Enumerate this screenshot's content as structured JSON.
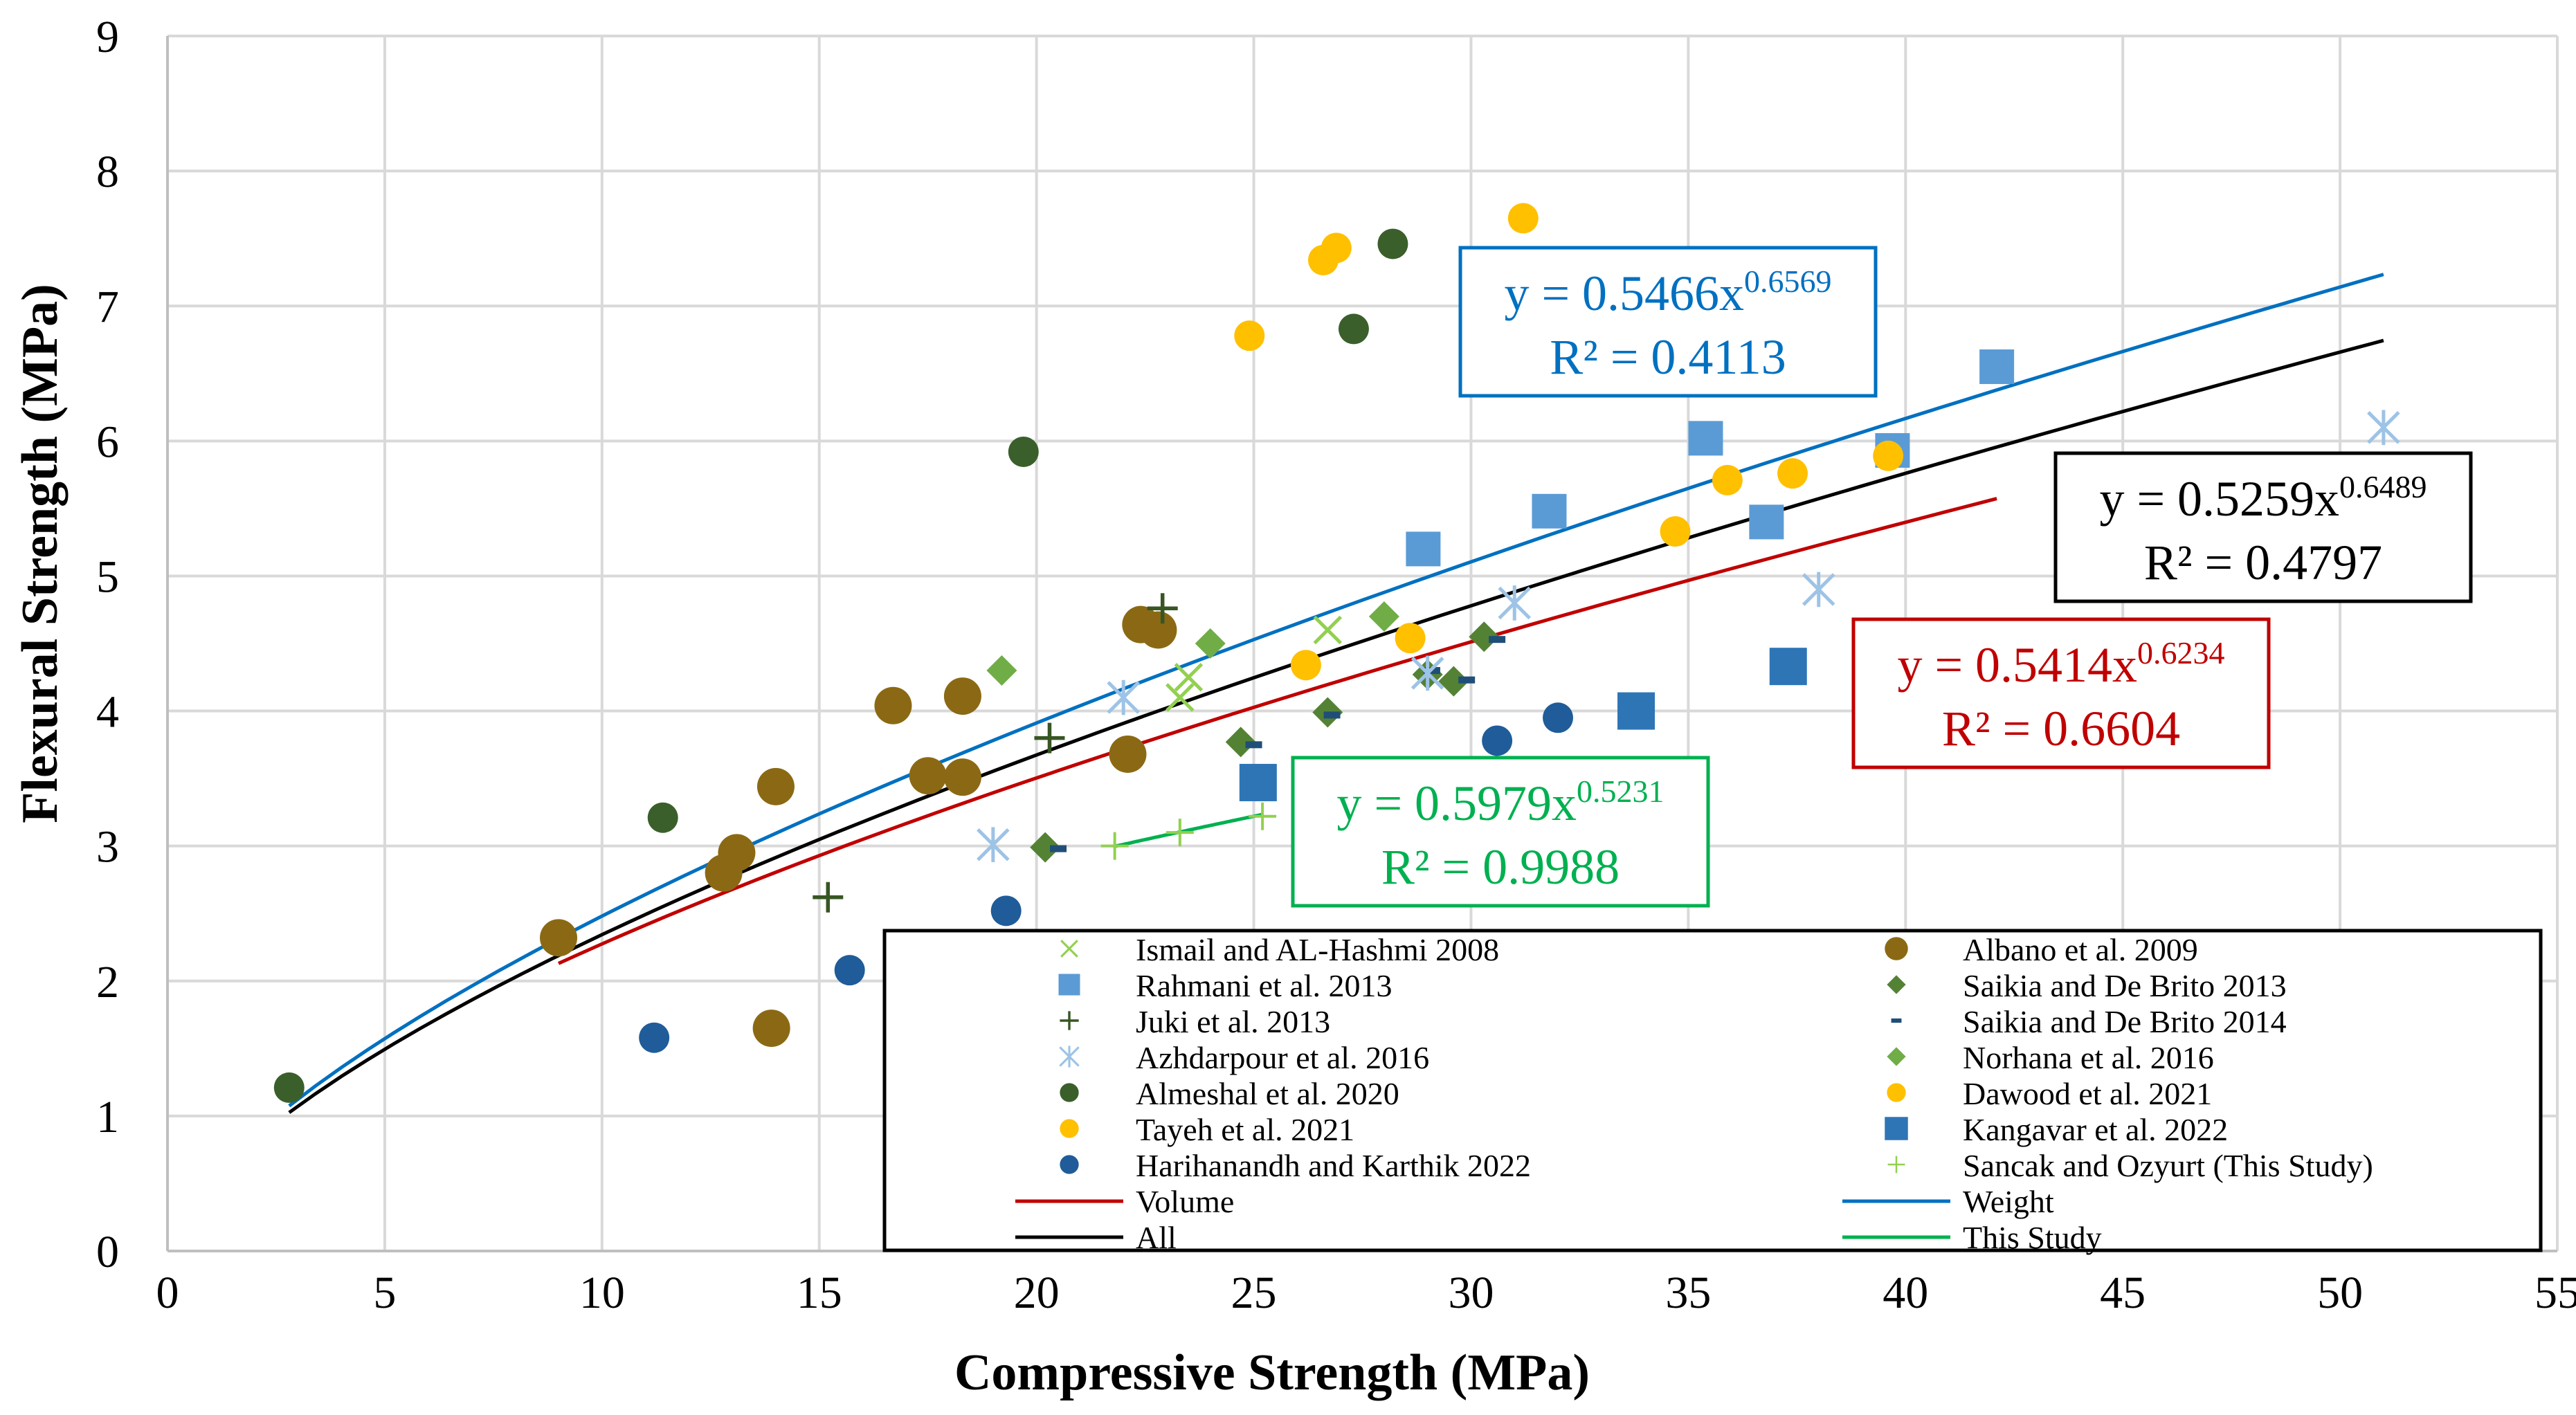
{
  "chart_data": {
    "type": "scatter",
    "title": "",
    "xlabel": "Compressive Strength (MPa)",
    "ylabel": "Flexural Strength (MPa)",
    "xlim": [
      0,
      55
    ],
    "ylim": [
      0,
      9
    ],
    "x_ticks": [
      0,
      5,
      10,
      15,
      20,
      25,
      30,
      35,
      40,
      45,
      50,
      55
    ],
    "y_ticks": [
      0,
      1,
      2,
      3,
      4,
      5,
      6,
      7,
      8,
      9
    ],
    "grid": true,
    "legend_position": "bottom-right",
    "series": [
      {
        "name": "Ismail and AL-Hashmi 2008",
        "marker": "x",
        "color": "#92D050",
        "points": [
          [
            23.5,
            4.25
          ],
          [
            23.3,
            4.1
          ],
          [
            26.7,
            4.6
          ]
        ]
      },
      {
        "name": "Albano et al. 2009",
        "marker": "circle-large",
        "color": "#8B6914",
        "points": [
          [
            9.0,
            2.32
          ],
          [
            12.8,
            2.8
          ],
          [
            13.1,
            2.95
          ],
          [
            13.9,
            1.65
          ],
          [
            14.0,
            3.44
          ],
          [
            16.7,
            4.04
          ],
          [
            17.5,
            3.52
          ],
          [
            18.3,
            4.11
          ],
          [
            18.3,
            3.51
          ],
          [
            22.1,
            3.68
          ],
          [
            22.4,
            4.64
          ],
          [
            22.8,
            4.6
          ]
        ]
      },
      {
        "name": "Rahmani et al. 2013",
        "marker": "square",
        "color": "#5B9BD5",
        "points": [
          [
            28.9,
            5.2
          ],
          [
            31.8,
            5.48
          ],
          [
            35.4,
            6.02
          ],
          [
            36.8,
            5.4
          ],
          [
            39.7,
            5.93
          ],
          [
            42.1,
            6.55
          ]
        ]
      },
      {
        "name": "Saikia and De Brito 2013",
        "marker": "diamond",
        "color": "#548235",
        "points": [
          [
            20.2,
            2.99
          ],
          [
            24.7,
            3.77
          ],
          [
            26.7,
            3.99
          ],
          [
            29.0,
            4.27
          ],
          [
            29.6,
            4.22
          ],
          [
            30.3,
            4.55
          ]
        ]
      },
      {
        "name": "Juki et al. 2013",
        "marker": "plus",
        "color": "#375623",
        "points": [
          [
            15.2,
            2.62
          ],
          [
            20.3,
            3.8
          ],
          [
            22.9,
            4.76
          ]
        ]
      },
      {
        "name": "Saikia and De Brito 2014",
        "marker": "dash",
        "color": "#1F4E79",
        "points": [
          [
            20.5,
            2.98
          ],
          [
            25.0,
            3.75
          ],
          [
            26.8,
            3.97
          ],
          [
            29.1,
            4.3
          ],
          [
            29.9,
            4.23
          ],
          [
            30.6,
            4.53
          ]
        ]
      },
      {
        "name": "Azhdarpour et al. 2016",
        "marker": "asterisk",
        "color": "#9DC3E6",
        "points": [
          [
            19.0,
            3.01
          ],
          [
            22.0,
            4.1
          ],
          [
            29.0,
            4.28
          ],
          [
            31.0,
            4.8
          ],
          [
            38.0,
            4.9
          ],
          [
            51.0,
            6.1
          ]
        ]
      },
      {
        "name": "Norhana et al. 2016",
        "marker": "diamond",
        "color": "#70AD47",
        "points": [
          [
            19.2,
            4.3
          ],
          [
            24.0,
            4.5
          ],
          [
            28.0,
            4.7
          ]
        ]
      },
      {
        "name": "Almeshal et al. 2020",
        "marker": "circle",
        "color": "#3A5F2B",
        "points": [
          [
            2.8,
            1.21
          ],
          [
            11.4,
            3.21
          ],
          [
            19.7,
            5.92
          ],
          [
            27.3,
            6.83
          ],
          [
            28.2,
            7.46
          ]
        ]
      },
      {
        "name": "Dawood et al. 2021",
        "marker": "circle",
        "color": "#FFC000",
        "points": [
          [
            26.2,
            4.34
          ],
          [
            28.6,
            4.54
          ],
          [
            34.7,
            5.33
          ],
          [
            35.9,
            5.71
          ],
          [
            37.4,
            5.76
          ],
          [
            39.6,
            5.89
          ]
        ]
      },
      {
        "name": "Tayeh et al. 2021",
        "marker": "circle",
        "color": "#FFC000",
        "points": [
          [
            24.9,
            6.78
          ],
          [
            26.6,
            7.34
          ],
          [
            26.9,
            7.43
          ],
          [
            31.2,
            7.65
          ]
        ]
      },
      {
        "name": "Kangavar et al. 2022",
        "marker": "square-large",
        "color": "#2E75B6",
        "points": [
          [
            25.1,
            3.47
          ],
          [
            33.8,
            4.0
          ],
          [
            37.3,
            4.33
          ]
        ]
      },
      {
        "name": "Harihanandh and Karthik 2022",
        "marker": "circle",
        "color": "#1F5C99",
        "points": [
          [
            11.2,
            1.58
          ],
          [
            15.7,
            2.08
          ],
          [
            19.3,
            2.52
          ],
          [
            30.6,
            3.78
          ],
          [
            32.0,
            3.95
          ]
        ]
      },
      {
        "name": "Sancak and Ozyurt (This Study)",
        "marker": "plus-thin",
        "color": "#92D050",
        "points": [
          [
            21.8,
            3.0
          ],
          [
            23.3,
            3.1
          ],
          [
            25.2,
            3.22
          ]
        ]
      }
    ],
    "fits": [
      {
        "name": "Volume",
        "color": "#C00000",
        "a": 0.5414,
        "b": 0.6234,
        "x_range": [
          9.0,
          42.1
        ],
        "equation": "y = 0.5414x",
        "exponent": "0.6234",
        "r2": "R² = 0.6604"
      },
      {
        "name": "Weight",
        "color": "#0070C0",
        "a": 0.5466,
        "b": 0.6569,
        "x_range": [
          2.8,
          51.0
        ],
        "equation": "y = 0.5466x",
        "exponent": "0.6569",
        "r2": "R² = 0.4113"
      },
      {
        "name": "All",
        "color": "#000000",
        "a": 0.5259,
        "b": 0.6489,
        "x_range": [
          2.8,
          51.0
        ],
        "equation": "y = 0.5259x",
        "exponent": "0.6489",
        "r2": "R² = 0.4797"
      },
      {
        "name": "This Study",
        "color": "#00B050",
        "a": 0.5979,
        "b": 0.5231,
        "x_range": [
          21.8,
          25.2
        ],
        "equation": "y = 0.5979x",
        "exponent": "0.5231",
        "r2": "R² = 0.9988"
      }
    ],
    "legend_entries": [
      {
        "label": "Ismail and AL-Hashmi 2008",
        "series": "Ismail and AL-Hashmi 2008"
      },
      {
        "label": "Albano et al. 2009",
        "series": "Albano et al. 2009"
      },
      {
        "label": "Rahmani et al. 2013",
        "series": "Rahmani et al. 2013"
      },
      {
        "label": "Saikia and De Brito 2013",
        "series": "Saikia and De Brito 2013"
      },
      {
        "label": "Juki et al. 2013",
        "series": "Juki et al. 2013"
      },
      {
        "label": "Saikia and De Brito 2014",
        "series": "Saikia and De Brito 2014"
      },
      {
        "label": "Azhdarpour et al. 2016",
        "series": "Azhdarpour et al. 2016"
      },
      {
        "label": "Norhana et al. 2016",
        "series": "Norhana et al. 2016"
      },
      {
        "label": "Almeshal et al. 2020",
        "series": "Almeshal et al. 2020"
      },
      {
        "label": "Dawood et al. 2021",
        "series": "Dawood et al. 2021"
      },
      {
        "label": "Tayeh et al. 2021",
        "series": "Tayeh et al. 2021"
      },
      {
        "label": "Kangavar et al. 2022",
        "series": "Kangavar et al. 2022"
      },
      {
        "label": "Harihanandh and Karthik 2022",
        "series": "Harihanandh and Karthik 2022"
      },
      {
        "label": "Sancak and Ozyurt (This Study)",
        "series": "Sancak and Ozyurt (This Study)"
      },
      {
        "label": "Volume",
        "fit": "Volume"
      },
      {
        "label": "Weight",
        "fit": "Weight"
      },
      {
        "label": "All",
        "fit": "All"
      },
      {
        "label": "This Study",
        "fit": "This Study"
      }
    ]
  }
}
